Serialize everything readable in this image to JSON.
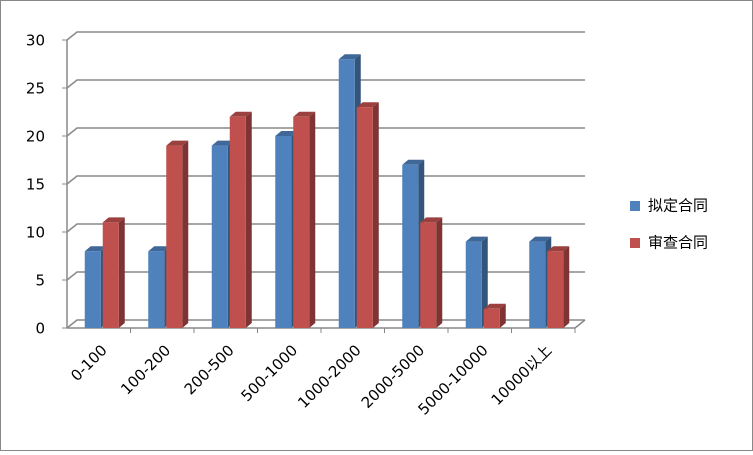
{
  "chart_data": {
    "type": "bar3d",
    "categories": [
      "0-100",
      "100-200",
      "200-500",
      "500-1000",
      "1000-2000",
      "2000-5000",
      "5000-10000",
      "10000以上"
    ],
    "series": [
      {
        "name": "拟定合同",
        "color": "#4f81bd",
        "values": [
          8,
          8,
          19,
          20,
          28,
          17,
          9,
          9
        ]
      },
      {
        "name": "审查合同",
        "color": "#c0504d",
        "values": [
          11,
          19,
          22,
          22,
          23,
          11,
          2,
          8
        ]
      }
    ],
    "ylim": [
      0,
      30
    ],
    "yticks": [
      0,
      5,
      10,
      15,
      20,
      25,
      30
    ],
    "grid": true,
    "legend": "right"
  }
}
